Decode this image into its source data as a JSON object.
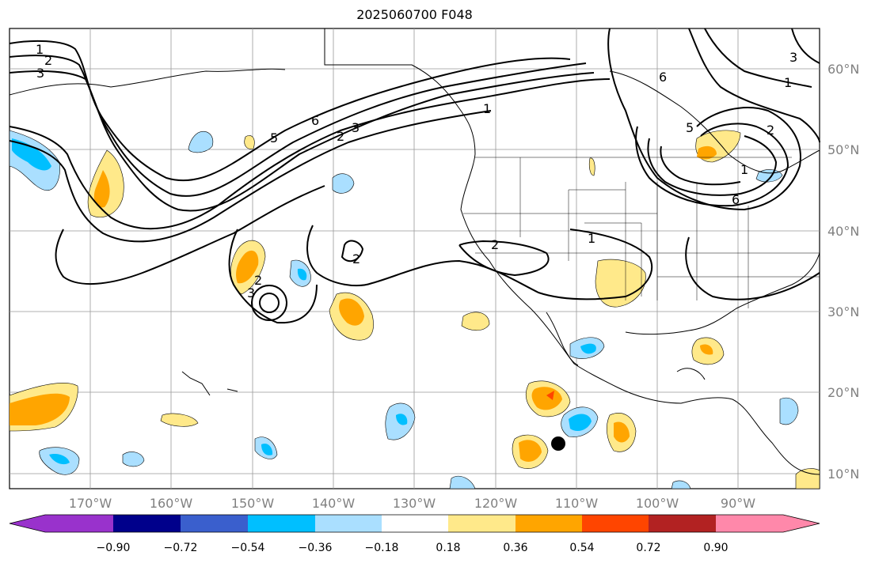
{
  "title": "2025060700 F048",
  "map": {
    "longitude_labels": [
      "170°W",
      "160°W",
      "150°W",
      "140°W",
      "130°W",
      "120°W",
      "110°W",
      "100°W",
      "90°W"
    ],
    "latitude_labels": [
      "60°N",
      "50°N",
      "40°N",
      "30°N",
      "20°N",
      "10°N"
    ],
    "contour_labels": [
      "1",
      "2",
      "3",
      "6",
      "5",
      "2",
      "3",
      "1",
      "2",
      "1",
      "2",
      "3",
      "2",
      "1",
      "6",
      "5",
      "2",
      "6",
      "1",
      "3"
    ],
    "colorbar": {
      "tick_labels": [
        "−0.90",
        "−0.72",
        "−0.54",
        "−0.36",
        "−0.18",
        "0.18",
        "0.36",
        "0.54",
        "0.72",
        "0.90"
      ],
      "colors": [
        "#9932cc",
        "#00008b",
        "#3a5fcd",
        "#00bfff",
        "#aadfff",
        "#ffffff",
        "#ffe98a",
        "#ffa500",
        "#ff4500",
        "#b22222",
        "#ff88aa"
      ]
    },
    "marker": "black-dot"
  }
}
